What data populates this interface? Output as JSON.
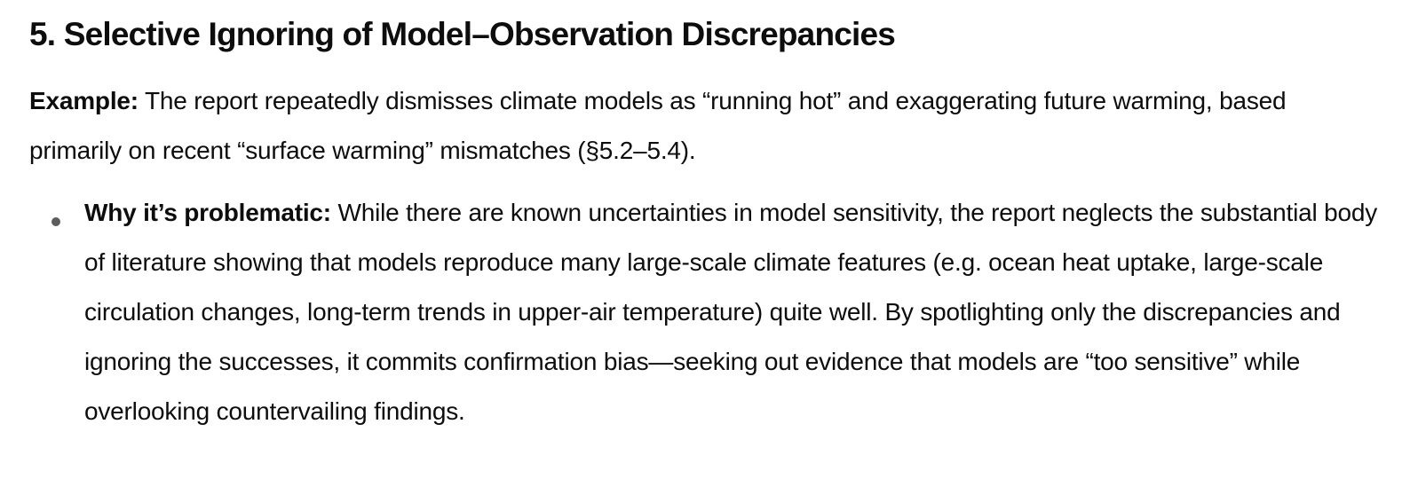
{
  "page": {
    "heading": "5. Selective Ignoring of Model–Observation Discrepancies",
    "example": {
      "label": "Example:",
      "text": " The report repeatedly dismisses climate models as “running hot” and exaggerating future warming, based primarily on recent “surface warming” mismatches (§5.2–5.4)."
    },
    "bullets": [
      {
        "label": "Why it’s problematic:",
        "text": " While there are known uncertainties in model sensitivity, the report neglects the substantial body of literature showing that models reproduce many large-scale climate features (e.g. ocean heat uptake, large-scale circulation changes, long-term trends in upper-air temperature) quite well. By spotlighting only the discrepancies and ignoring the successes, it commits confirmation bias—seeking out evidence that models are “too sensitive” while overlooking countervailing findings."
      }
    ],
    "colors": {
      "text": "#0d0d0d",
      "background": "#ffffff",
      "bullet": "#5d5d5d"
    }
  }
}
